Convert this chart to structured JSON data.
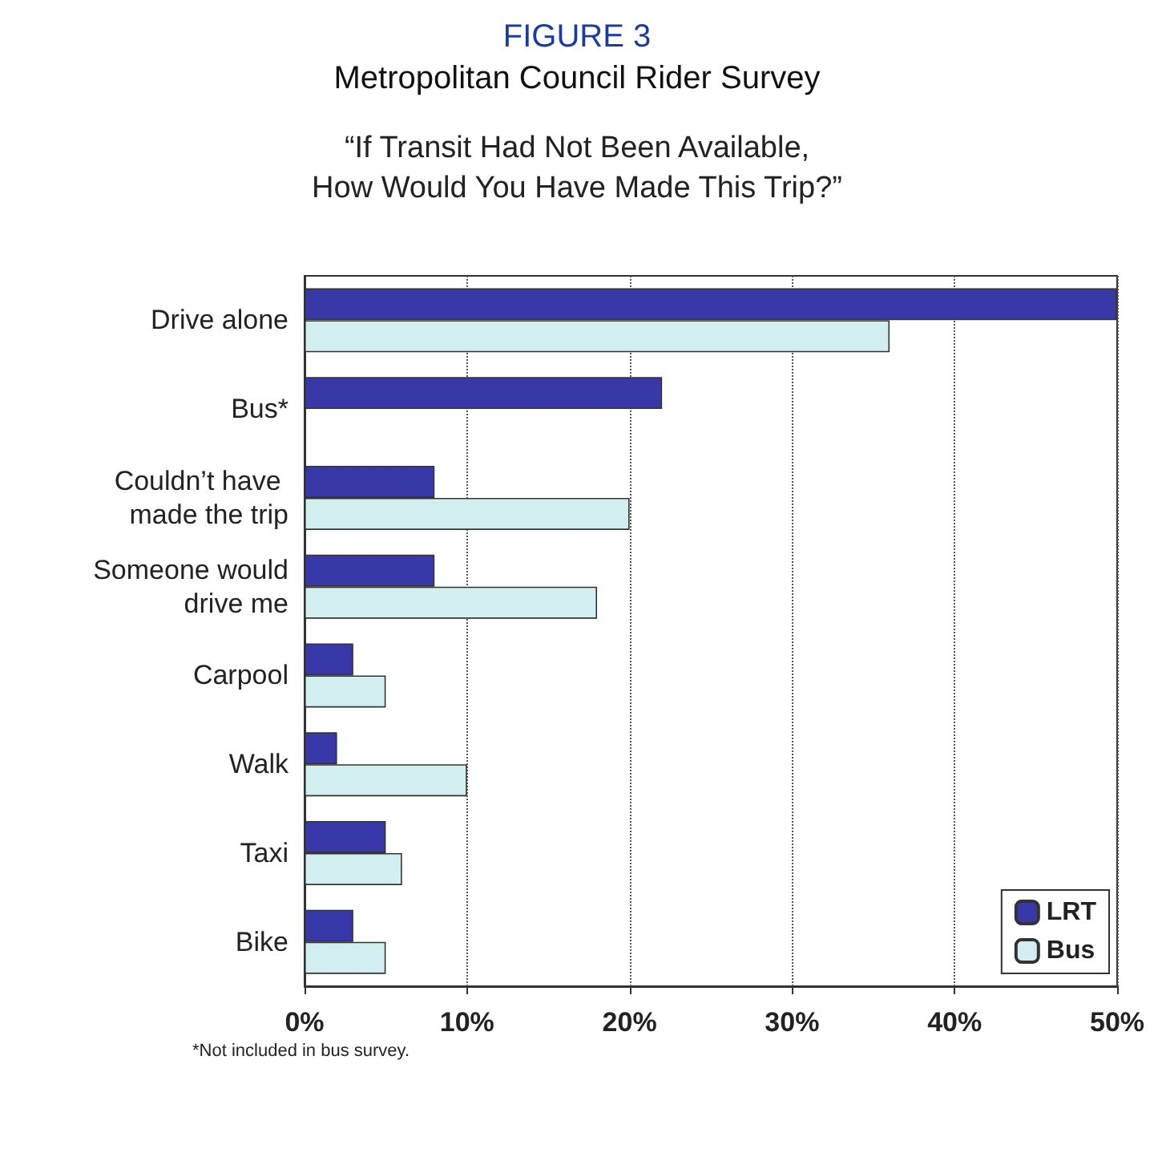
{
  "chart_data": {
    "type": "bar",
    "orientation": "horizontal",
    "title": "FIGURE 3",
    "subtitle": "Metropolitan Council Rider Survey",
    "annotations": [
      "“If Transit Had Not Been Available,\nHow Would You Have Made This Trip?”",
      "*Not included in bus survey."
    ],
    "categories": [
      "Drive alone",
      "Bus*",
      "Couldn’t have made the trip",
      "Someone would drive me",
      "Carpool",
      "Walk",
      "Taxi",
      "Bike"
    ],
    "series": [
      {
        "name": "LRT",
        "color": "#3838a8",
        "values": [
          50,
          22,
          8,
          8,
          3,
          2,
          5,
          3
        ]
      },
      {
        "name": "Bus",
        "color": "#d2eeee",
        "values": [
          36,
          null,
          20,
          18,
          5,
          10,
          6,
          5
        ]
      }
    ],
    "xlim": [
      0,
      50
    ],
    "xticks": [
      {
        "value": 0,
        "label": "0%"
      },
      {
        "value": 10,
        "label": "10%"
      },
      {
        "value": 20,
        "label": "20%"
      },
      {
        "value": 30,
        "label": "30%"
      },
      {
        "value": 40,
        "label": "40%"
      },
      {
        "value": 50,
        "label": "50%"
      }
    ],
    "grid": "x",
    "legend": "bottom right"
  }
}
